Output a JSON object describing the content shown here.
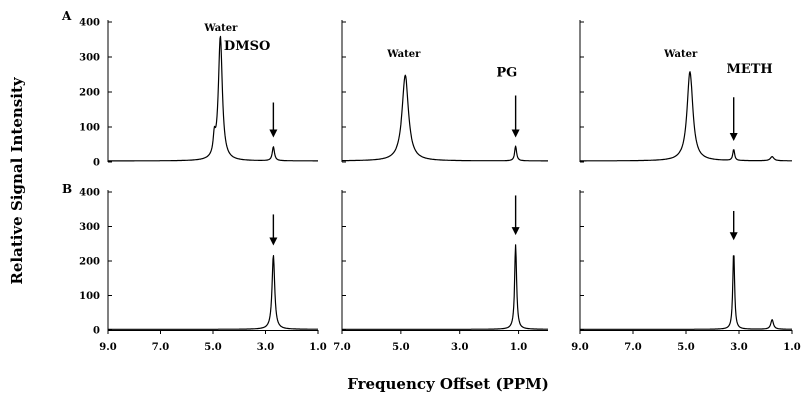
{
  "figure": {
    "ylabel": "Relative Signal Intensity",
    "xlabel": "Frequency Offset (PPM)",
    "row_labels": [
      "A",
      "B"
    ]
  },
  "chart_data": {
    "type": "line",
    "y_ticks": [
      0,
      100,
      200,
      300,
      400
    ],
    "ylim": [
      0,
      400
    ],
    "columns": [
      {
        "x_ticks": [
          "9.0",
          "7.0",
          "5.0",
          "3.0",
          "1.0"
        ],
        "xlim": [
          9.0,
          1.0
        ]
      },
      {
        "x_ticks": [
          "7.0",
          "5.0",
          "3.0",
          "1.0"
        ],
        "xlim": [
          7.0,
          0.0
        ]
      },
      {
        "x_ticks": [
          "9.0",
          "7.0",
          "5.0",
          "3.0",
          "1.0"
        ],
        "xlim": [
          9.0,
          1.0
        ]
      }
    ],
    "panels": [
      {
        "row": "A",
        "col": 0,
        "labels": [
          {
            "text": "Water",
            "x": 4.7,
            "y": 375,
            "size": "small"
          },
          {
            "text": "DMSO",
            "x": 3.7,
            "y": 320,
            "size": "big"
          }
        ],
        "arrows": [
          {
            "x": 2.7,
            "y_from": 170,
            "y_to": 70
          }
        ],
        "peaks": [
          {
            "x": 4.72,
            "h": 355,
            "w": 0.09
          },
          {
            "x": 4.95,
            "h": 50,
            "w": 0.05
          },
          {
            "x": 2.7,
            "h": 40,
            "w": 0.05
          }
        ],
        "baseline": 3
      },
      {
        "row": "A",
        "col": 1,
        "labels": [
          {
            "text": "Water",
            "x": 4.9,
            "y": 300,
            "size": "small"
          },
          {
            "text": "PG",
            "x": 1.4,
            "y": 245,
            "size": "big"
          }
        ],
        "arrows": [
          {
            "x": 1.1,
            "y_from": 190,
            "y_to": 70
          }
        ],
        "peaks": [
          {
            "x": 4.85,
            "h": 245,
            "w": 0.13
          },
          {
            "x": 1.1,
            "h": 42,
            "w": 0.04
          }
        ],
        "baseline": 3
      },
      {
        "row": "A",
        "col": 2,
        "labels": [
          {
            "text": "Water",
            "x": 5.2,
            "y": 300,
            "size": "small"
          },
          {
            "text": "METH",
            "x": 2.6,
            "y": 255,
            "size": "big"
          }
        ],
        "arrows": [
          {
            "x": 3.2,
            "y_from": 185,
            "y_to": 60
          }
        ],
        "peaks": [
          {
            "x": 4.85,
            "h": 255,
            "w": 0.13
          },
          {
            "x": 3.2,
            "h": 32,
            "w": 0.04
          },
          {
            "x": 1.75,
            "h": 12,
            "w": 0.08
          }
        ],
        "baseline": 3
      },
      {
        "row": "B",
        "col": 0,
        "labels": [],
        "arrows": [
          {
            "x": 2.7,
            "y_from": 335,
            "y_to": 245
          }
        ],
        "peaks": [
          {
            "x": 2.7,
            "h": 215,
            "w": 0.06
          }
        ],
        "baseline": 2
      },
      {
        "row": "B",
        "col": 1,
        "labels": [],
        "arrows": [
          {
            "x": 1.1,
            "y_from": 390,
            "y_to": 275
          }
        ],
        "peaks": [
          {
            "x": 1.1,
            "h": 245,
            "w": 0.04
          }
        ],
        "baseline": 2
      },
      {
        "row": "B",
        "col": 2,
        "labels": [],
        "arrows": [
          {
            "x": 3.2,
            "y_from": 345,
            "y_to": 260
          }
        ],
        "peaks": [
          {
            "x": 3.2,
            "h": 225,
            "w": 0.04
          },
          {
            "x": 1.75,
            "h": 28,
            "w": 0.06
          }
        ],
        "baseline": 2
      }
    ]
  }
}
